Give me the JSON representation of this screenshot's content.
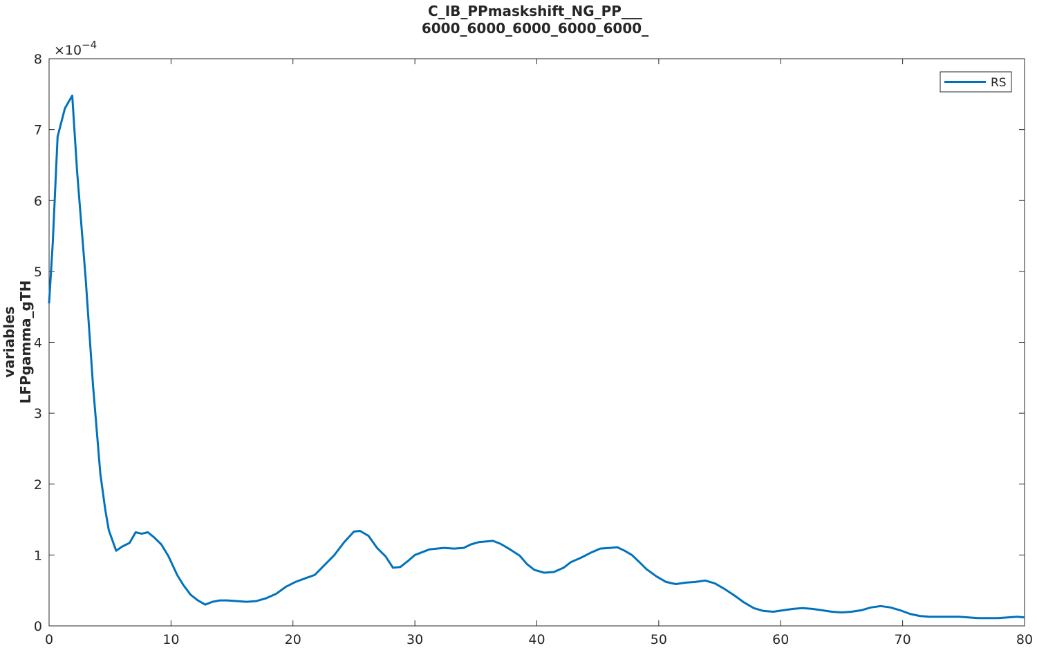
{
  "chart_data": {
    "type": "line",
    "title": [
      "C_IB_PPmaskshift_NG_PP___",
      "6000_6000_6000_6000_6000_"
    ],
    "xlabel": "",
    "ylabel": [
      "variables",
      "LFPgamma_gTH"
    ],
    "xlim": [
      0,
      80
    ],
    "ylim": [
      0,
      8
    ],
    "y_exponent_label": "×10",
    "y_exponent_power": "−4",
    "x_ticks": [
      0,
      10,
      20,
      30,
      40,
      50,
      60,
      70,
      80
    ],
    "y_ticks": [
      0,
      1,
      2,
      3,
      4,
      5,
      6,
      7,
      8
    ],
    "grid": false,
    "legend_position": "top-right",
    "line_color": "#0072BD",
    "series": [
      {
        "name": "RS",
        "x": [
          0,
          0.3,
          0.7,
          1.3,
          1.9,
          2.3,
          3.0,
          3.6,
          4.2,
          4.6,
          4.9,
          5.5,
          6.0,
          6.6,
          7.1,
          7.6,
          8.1,
          8.6,
          9.2,
          9.8,
          10.5,
          11.0,
          11.6,
          12.2,
          12.8,
          13.4,
          14.0,
          14.6,
          15.4,
          16.2,
          17.0,
          17.8,
          18.6,
          19.4,
          20.2,
          21.0,
          21.8,
          22.6,
          23.4,
          24.2,
          25.0,
          25.5,
          26.2,
          26.9,
          27.6,
          28.2,
          28.8,
          29.4,
          30.0,
          30.6,
          31.2,
          31.8,
          32.4,
          33.2,
          34.0,
          34.6,
          35.2,
          35.8,
          36.4,
          37.0,
          37.8,
          38.6,
          39.2,
          39.8,
          40.6,
          41.4,
          42.2,
          42.8,
          43.6,
          44.4,
          45.2,
          46.0,
          46.6,
          47.2,
          47.8,
          48.4,
          49.0,
          49.8,
          50.6,
          51.4,
          52.2,
          53.0,
          53.8,
          54.6,
          55.4,
          56.2,
          57.0,
          57.8,
          58.6,
          59.4,
          60.2,
          61.0,
          61.8,
          62.6,
          63.4,
          64.2,
          65.0,
          65.8,
          66.6,
          67.4,
          68.2,
          69.0,
          69.8,
          70.6,
          71.4,
          72.2,
          73.0,
          73.8,
          74.6,
          75.4,
          76.2,
          77.0,
          77.8,
          78.6,
          79.4,
          80.0
        ],
        "values": [
          4.55,
          5.4,
          6.9,
          7.3,
          7.48,
          6.4,
          4.9,
          3.4,
          2.15,
          1.65,
          1.35,
          1.06,
          1.12,
          1.17,
          1.32,
          1.3,
          1.32,
          1.25,
          1.15,
          0.98,
          0.72,
          0.58,
          0.44,
          0.36,
          0.3,
          0.34,
          0.36,
          0.36,
          0.35,
          0.34,
          0.35,
          0.39,
          0.45,
          0.55,
          0.62,
          0.67,
          0.72,
          0.86,
          1.0,
          1.18,
          1.33,
          1.34,
          1.27,
          1.1,
          0.98,
          0.82,
          0.83,
          0.91,
          1.0,
          1.04,
          1.08,
          1.09,
          1.1,
          1.09,
          1.1,
          1.15,
          1.18,
          1.19,
          1.2,
          1.16,
          1.08,
          0.99,
          0.87,
          0.79,
          0.75,
          0.76,
          0.82,
          0.9,
          0.96,
          1.03,
          1.09,
          1.1,
          1.11,
          1.06,
          1.0,
          0.9,
          0.8,
          0.7,
          0.62,
          0.59,
          0.61,
          0.62,
          0.64,
          0.6,
          0.52,
          0.43,
          0.33,
          0.25,
          0.21,
          0.2,
          0.22,
          0.24,
          0.25,
          0.24,
          0.22,
          0.2,
          0.19,
          0.2,
          0.22,
          0.26,
          0.28,
          0.26,
          0.22,
          0.17,
          0.14,
          0.13,
          0.13,
          0.13,
          0.13,
          0.12,
          0.11,
          0.11,
          0.11,
          0.12,
          0.13,
          0.12
        ]
      }
    ]
  }
}
